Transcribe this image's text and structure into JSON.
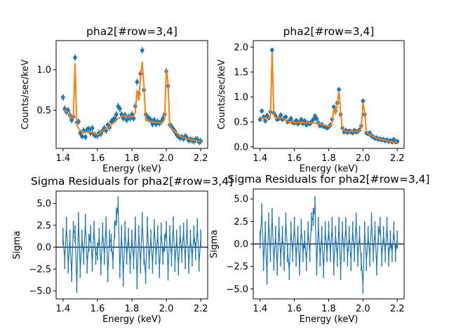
{
  "colors": {
    "data": "#1f77b4",
    "model": "#ff7f0e",
    "zero_line": "#000000"
  },
  "chart_data": [
    {
      "type": "line",
      "title": "pha2[#row=3,4]",
      "xlabel": "Energy (keV)",
      "ylabel": "Counts/sec/keV",
      "xlim": [
        1.36,
        2.24
      ],
      "ylim": [
        0.03,
        1.36
      ],
      "xticks": [
        "1.4",
        "1.6",
        "1.8",
        "2.0",
        "2.2"
      ],
      "yticks": [
        "0.5",
        "1.0"
      ],
      "x_start": 1.4,
      "x_step": 0.01,
      "data_err": 0.04,
      "data": [
        0.66,
        0.52,
        0.48,
        0.5,
        0.44,
        0.38,
        0.42,
        1.15,
        0.35,
        0.36,
        0.22,
        0.18,
        0.25,
        0.17,
        0.26,
        0.27,
        0.22,
        0.28,
        0.2,
        0.19,
        0.19,
        0.22,
        0.21,
        0.25,
        0.28,
        0.25,
        0.32,
        0.29,
        0.36,
        0.38,
        0.4,
        0.45,
        0.55,
        0.52,
        0.45,
        0.4,
        0.44,
        0.38,
        0.42,
        0.4,
        0.45,
        0.4,
        0.55,
        0.85,
        0.7,
        0.95,
        1.24,
        0.75,
        0.45,
        0.42,
        0.4,
        0.38,
        0.33,
        0.38,
        0.33,
        0.36,
        0.34,
        0.36,
        0.4,
        0.45,
        0.98,
        0.8,
        0.32,
        0.3,
        0.27,
        0.24,
        0.2,
        0.18,
        0.16,
        0.17,
        0.15,
        0.18,
        0.16,
        0.13,
        0.14,
        0.13,
        0.12,
        0.14,
        0.14,
        0.11,
        0.12
      ],
      "model": [
        0.5,
        0.5,
        0.49,
        0.47,
        0.44,
        0.41,
        0.4,
        1.08,
        0.32,
        0.28,
        0.25,
        0.24,
        0.23,
        0.23,
        0.23,
        0.23,
        0.23,
        0.23,
        0.22,
        0.21,
        0.2,
        0.21,
        0.22,
        0.24,
        0.26,
        0.27,
        0.29,
        0.3,
        0.32,
        0.34,
        0.35,
        0.38,
        0.4,
        0.41,
        0.42,
        0.43,
        0.43,
        0.43,
        0.42,
        0.42,
        0.42,
        0.43,
        0.48,
        0.75,
        0.62,
        0.9,
        1.1,
        0.8,
        0.38,
        0.37,
        0.36,
        0.36,
        0.36,
        0.35,
        0.35,
        0.35,
        0.35,
        0.34,
        0.35,
        0.4,
        1.0,
        0.85,
        0.3,
        0.28,
        0.26,
        0.24,
        0.22,
        0.2,
        0.18,
        0.17,
        0.16,
        0.16,
        0.15,
        0.15,
        0.14,
        0.13,
        0.13,
        0.13,
        0.12,
        0.12,
        0.12
      ]
    },
    {
      "type": "line",
      "title": "pha2[#row=3,4]",
      "xlabel": "Energy (keV)",
      "ylabel": "Counts/sec/keV",
      "xlim": [
        1.36,
        2.24
      ],
      "ylim": [
        -0.03,
        2.13
      ],
      "xticks": [
        "1.4",
        "1.6",
        "1.8",
        "2.0",
        "2.2"
      ],
      "yticks": [
        "0.0",
        "0.5",
        "1.0",
        "1.5",
        "2.0"
      ],
      "x_start": 1.4,
      "x_step": 0.01,
      "data_err": 0.05,
      "data": [
        0.55,
        0.72,
        0.6,
        0.52,
        0.63,
        0.58,
        0.7,
        1.94,
        0.68,
        0.62,
        0.55,
        0.57,
        0.64,
        0.55,
        0.58,
        0.6,
        0.5,
        0.52,
        0.57,
        0.49,
        0.48,
        0.53,
        0.46,
        0.5,
        0.55,
        0.47,
        0.52,
        0.44,
        0.48,
        0.46,
        0.5,
        0.55,
        0.62,
        0.56,
        0.48,
        0.42,
        0.45,
        0.41,
        0.4,
        0.38,
        0.4,
        0.44,
        0.55,
        0.8,
        0.72,
        0.88,
        1.15,
        0.65,
        0.38,
        0.3,
        0.33,
        0.29,
        0.32,
        0.3,
        0.28,
        0.33,
        0.3,
        0.31,
        0.34,
        0.42,
        0.92,
        0.65,
        0.28,
        0.26,
        0.28,
        0.22,
        0.2,
        0.17,
        0.18,
        0.15,
        0.16,
        0.14,
        0.15,
        0.12,
        0.14,
        0.11,
        0.13,
        0.1,
        0.15,
        0.1,
        0.11
      ],
      "model": [
        0.58,
        0.58,
        0.58,
        0.58,
        0.58,
        0.58,
        0.6,
        1.9,
        0.65,
        0.58,
        0.58,
        0.58,
        0.58,
        0.58,
        0.56,
        0.52,
        0.5,
        0.5,
        0.5,
        0.5,
        0.49,
        0.49,
        0.49,
        0.49,
        0.49,
        0.49,
        0.48,
        0.48,
        0.48,
        0.48,
        0.48,
        0.48,
        0.48,
        0.47,
        0.47,
        0.46,
        0.45,
        0.44,
        0.43,
        0.42,
        0.41,
        0.42,
        0.48,
        0.78,
        0.65,
        0.85,
        1.12,
        0.7,
        0.35,
        0.32,
        0.31,
        0.31,
        0.31,
        0.31,
        0.31,
        0.31,
        0.31,
        0.31,
        0.32,
        0.38,
        0.88,
        0.7,
        0.3,
        0.27,
        0.25,
        0.23,
        0.21,
        0.19,
        0.17,
        0.16,
        0.16,
        0.15,
        0.14,
        0.13,
        0.12,
        0.11,
        0.11,
        0.1,
        0.1,
        0.1,
        0.1
      ]
    },
    {
      "type": "errorbar",
      "title": "Sigma Residuals for pha2[#row=3,4]",
      "xlabel": "Energy (keV)",
      "ylabel": "Sigma",
      "xlim": [
        1.36,
        2.24
      ],
      "ylim": [
        -5.9,
        6.4
      ],
      "xticks": [
        "1.4",
        "1.6",
        "1.8",
        "2.0",
        "2.2"
      ],
      "yticks": [
        "5.0",
        "2.5",
        "0.0",
        "−2.5",
        "−5.0"
      ],
      "x_start": 1.4,
      "x_step": 0.01,
      "err": 1,
      "residuals": [
        1.2,
        -1.5,
        2.5,
        -2,
        1,
        -3,
        2,
        1.5,
        -4.2,
        3,
        -2.5,
        1,
        -1,
        2.8,
        -2,
        0.5,
        1.5,
        -1.8,
        2,
        -1,
        -0.5,
        1.2,
        -2.2,
        1.8,
        -1,
        2.5,
        -3,
        1,
        0.5,
        -1.5,
        2,
        3.5,
        4.8,
        -2.5,
        1.5,
        -3.5,
        2,
        -1,
        1.2,
        -2,
        1,
        -1.5,
        2.5,
        -3.8,
        1.5,
        -2,
        3,
        -1,
        -3.2,
        2.5,
        -1.5,
        1,
        -2,
        2.2,
        -1,
        1.5,
        -2.5,
        1.8,
        -1,
        0.5,
        2,
        -2.8,
        1.5,
        -1.2,
        2.5,
        -1.8,
        1,
        -2.2,
        1.5,
        -0.8,
        1.8,
        -1.5,
        2.2,
        -2,
        1,
        -1.2,
        1.5,
        -0.5,
        2.3,
        -1.8,
        1
      ]
    },
    {
      "type": "errorbar",
      "title": "Sigma Residuals for pha2[#row=3,4]",
      "xlabel": "Energy (keV)",
      "ylabel": "Sigma",
      "xlim": [
        1.36,
        2.24
      ],
      "ylim": [
        -6.1,
        6.1
      ],
      "xticks": [
        "1.4",
        "1.6",
        "1.8",
        "2.0",
        "2.2"
      ],
      "yticks": [
        "5.0",
        "2.5",
        "0.0",
        "−2.5",
        "−5.0"
      ],
      "x_start": 1.4,
      "x_step": 0.01,
      "err": 1,
      "residuals": [
        0.5,
        3.5,
        -2,
        1.5,
        -3.5,
        2.5,
        -1,
        3,
        -2,
        1,
        -2.5,
        2,
        -1.5,
        1,
        -2,
        2.5,
        -1,
        -3,
        1.5,
        -1,
        2,
        -1.5,
        1,
        -2.5,
        1.8,
        -1,
        0.5,
        -2,
        1.5,
        -1,
        2.5,
        3,
        4.3,
        -2.5,
        2,
        -1.5,
        1,
        -2.8,
        1.5,
        -1,
        1.5,
        -1,
        2,
        -2.5,
        1,
        -1.5,
        2,
        -3,
        1.5,
        -1,
        2,
        -1.5,
        1,
        -2,
        1.5,
        -1,
        2.5,
        -1.5,
        1,
        -2,
        -4.5,
        1.5,
        -2,
        1,
        -1.5,
        2.5,
        -1,
        1.5,
        -2.5,
        1,
        2,
        -1.5,
        1,
        -1,
        2,
        -1.5,
        0.5,
        -1,
        1.5,
        -1,
        0.5
      ]
    }
  ]
}
